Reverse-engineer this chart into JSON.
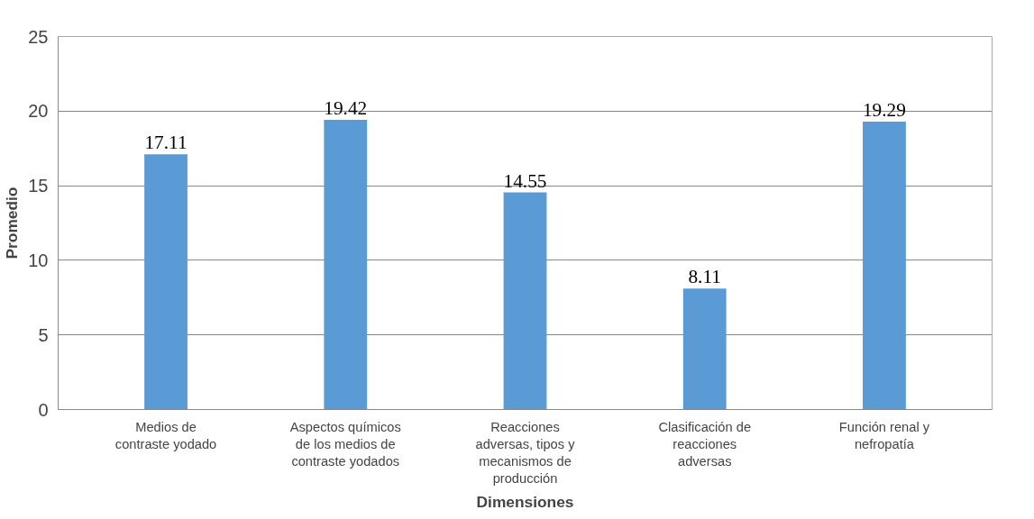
{
  "chart_data": {
    "type": "bar",
    "xlabel": "Dimensiones",
    "ylabel": "Promedio",
    "categories": [
      "Medios de contraste yodado",
      "Aspectos químicos de los medios de contraste yodados",
      "Reacciones adversas, tipos y mecanismos de producción",
      "Clasificación de reacciones adversas",
      "Función renal y nefropatía"
    ],
    "values": [
      17.11,
      19.42,
      14.55,
      8.11,
      19.29
    ],
    "color": "#5b9bd5",
    "ylim": [
      0,
      25
    ],
    "yticks": [
      0,
      5,
      10,
      15,
      20,
      25
    ],
    "grid": "y",
    "data_labels": true
  }
}
